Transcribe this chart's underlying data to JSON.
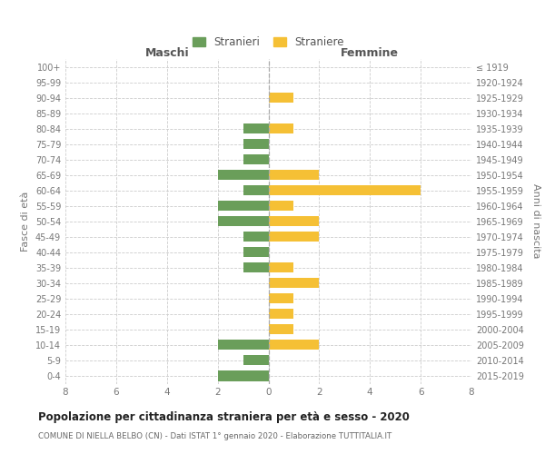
{
  "age_groups": [
    "100+",
    "95-99",
    "90-94",
    "85-89",
    "80-84",
    "75-79",
    "70-74",
    "65-69",
    "60-64",
    "55-59",
    "50-54",
    "45-49",
    "40-44",
    "35-39",
    "30-34",
    "25-29",
    "20-24",
    "15-19",
    "10-14",
    "5-9",
    "0-4"
  ],
  "birth_years": [
    "≤ 1919",
    "1920-1924",
    "1925-1929",
    "1930-1934",
    "1935-1939",
    "1940-1944",
    "1945-1949",
    "1950-1954",
    "1955-1959",
    "1960-1964",
    "1965-1969",
    "1970-1974",
    "1975-1979",
    "1980-1984",
    "1985-1989",
    "1990-1994",
    "1995-1999",
    "2000-2004",
    "2005-2009",
    "2010-2014",
    "2015-2019"
  ],
  "maschi": [
    0,
    0,
    0,
    0,
    1,
    1,
    1,
    2,
    1,
    2,
    2,
    1,
    1,
    1,
    0,
    0,
    0,
    0,
    2,
    1,
    2
  ],
  "femmine": [
    0,
    0,
    1,
    0,
    1,
    0,
    0,
    2,
    6,
    1,
    2,
    2,
    0,
    1,
    2,
    1,
    1,
    1,
    2,
    0,
    0
  ],
  "color_maschi": "#6a9e5a",
  "color_femmine": "#f5c035",
  "xlim": 8,
  "title": "Popolazione per cittadinanza straniera per età e sesso - 2020",
  "subtitle": "COMUNE DI NIELLA BELBO (CN) - Dati ISTAT 1° gennaio 2020 - Elaborazione TUTTITALIA.IT",
  "ylabel_left": "Fasce di età",
  "ylabel_right": "Anni di nascita",
  "header_left": "Maschi",
  "header_right": "Femmine",
  "legend_maschi": "Stranieri",
  "legend_femmine": "Straniere",
  "bg_color": "#ffffff",
  "grid_color": "#cccccc",
  "axis_color": "#999999",
  "label_color": "#777777"
}
